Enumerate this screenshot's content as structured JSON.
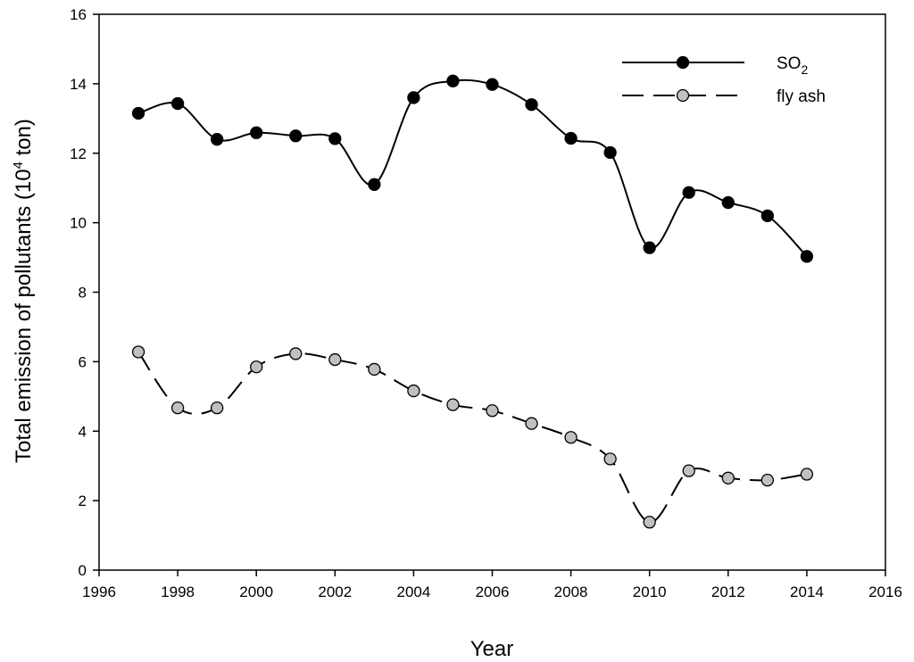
{
  "chart_data": {
    "type": "line",
    "title": "",
    "xlabel": "Year",
    "ylabel": "Total emission of pollutants (10",
    "ylabel_superscript": "4",
    "ylabel_suffix": " ton)",
    "xlim": [
      1996,
      2016
    ],
    "ylim": [
      0,
      16
    ],
    "xticks": [
      1996,
      1998,
      2000,
      2002,
      2004,
      2006,
      2008,
      2010,
      2012,
      2014,
      2016
    ],
    "yticks": [
      0,
      2,
      4,
      6,
      8,
      10,
      12,
      14,
      16
    ],
    "grid": false,
    "legend_position": "top-right",
    "x": [
      1997,
      1998,
      1999,
      2000,
      2001,
      2002,
      2003,
      2004,
      2005,
      2006,
      2007,
      2008,
      2009,
      2010,
      2011,
      2012,
      2013,
      2014
    ],
    "series": [
      {
        "name": "SO",
        "name_subscript": "2",
        "line_style": "solid",
        "marker_fill": "#000000",
        "values": [
          13.15,
          13.43,
          12.4,
          12.59,
          12.5,
          12.42,
          11.1,
          13.6,
          14.08,
          13.98,
          13.4,
          12.43,
          12.02,
          9.28,
          10.87,
          10.58,
          10.2,
          9.03
        ]
      },
      {
        "name": "fly ash",
        "line_style": "dashed",
        "marker_fill": "#c0c0c0",
        "values": [
          6.28,
          4.67,
          4.67,
          5.85,
          6.23,
          6.06,
          5.78,
          5.16,
          4.76,
          4.59,
          4.22,
          3.82,
          3.2,
          1.38,
          2.86,
          2.65,
          2.59,
          2.76
        ]
      }
    ]
  }
}
